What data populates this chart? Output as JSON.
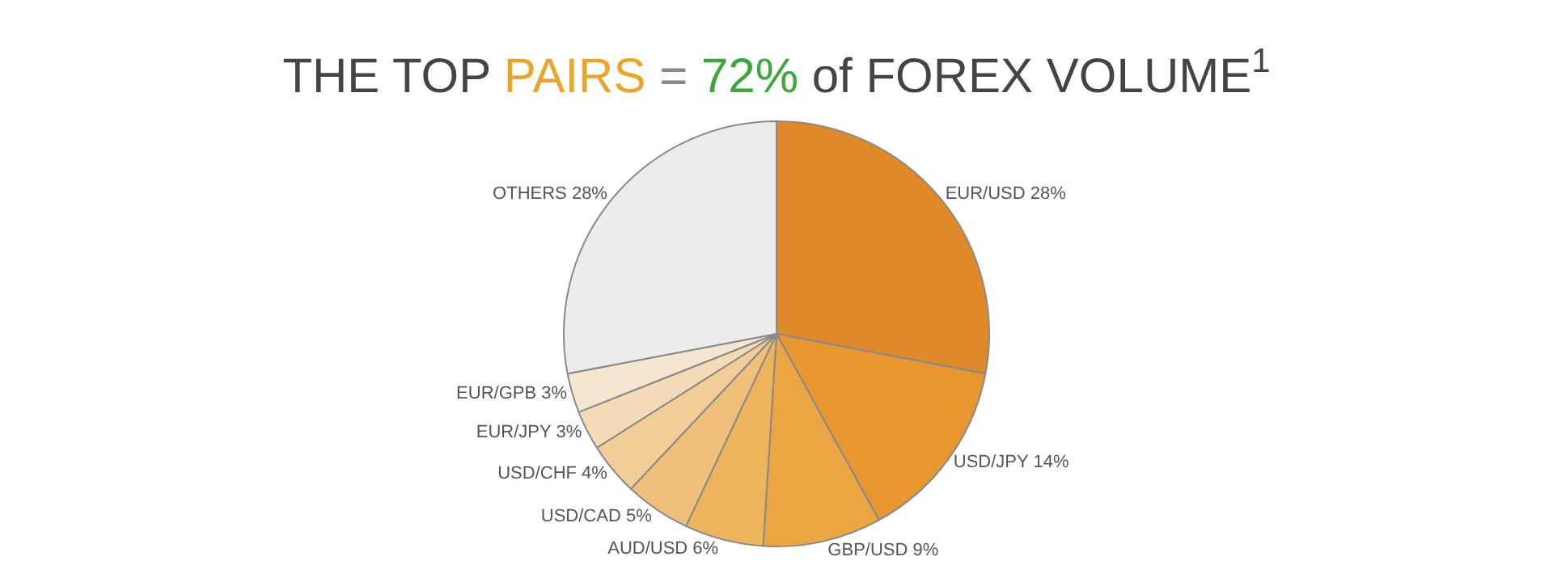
{
  "chart_data": {
    "type": "pie",
    "title": "THE TOP PAIRS = 72% of FOREX VOLUME$^{1}$",
    "categories": [
      "EUR/USD",
      "USD/JPY",
      "GBP/USD",
      "AUD/USD",
      "USD/CAD",
      "USD/CHF",
      "EUR/JPY",
      "EUR/GPB",
      "OTHERS"
    ],
    "values": [
      28,
      14,
      9,
      6,
      5,
      4,
      3,
      3,
      28
    ],
    "value_labels": [
      "28%",
      "14%",
      "9%",
      "6%",
      "5%",
      "4%",
      "3%",
      "3%",
      "28%"
    ],
    "colors": [
      "#e0892a",
      "#e8962f",
      "#eba542",
      "#eeb45c",
      "#f0c07a",
      "#f2cd98",
      "#f4dbb8",
      "#f5e6d2",
      "#ececec"
    ],
    "legend": false
  }
}
